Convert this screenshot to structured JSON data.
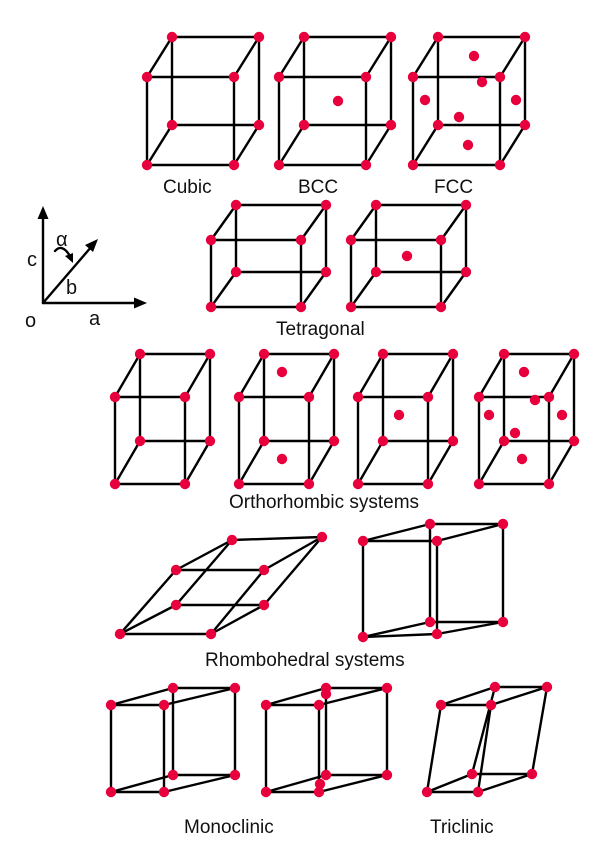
{
  "colors": {
    "atom": "#e8003d",
    "edge": "#000000",
    "text": "#111111"
  },
  "labels": {
    "cubic": "Cubic",
    "bcc": "BCC",
    "fcc": "FCC",
    "tetragonal": "Tetragonal",
    "orthorhombic": "Orthorhombic systems",
    "rhombohedral": "Rhombohedral systems",
    "monoclinic": "Monoclinic",
    "triclinic": "Triclinic"
  },
  "axes": {
    "c": "c",
    "alpha": "α",
    "b": "b",
    "origin": "o",
    "a": "a"
  }
}
